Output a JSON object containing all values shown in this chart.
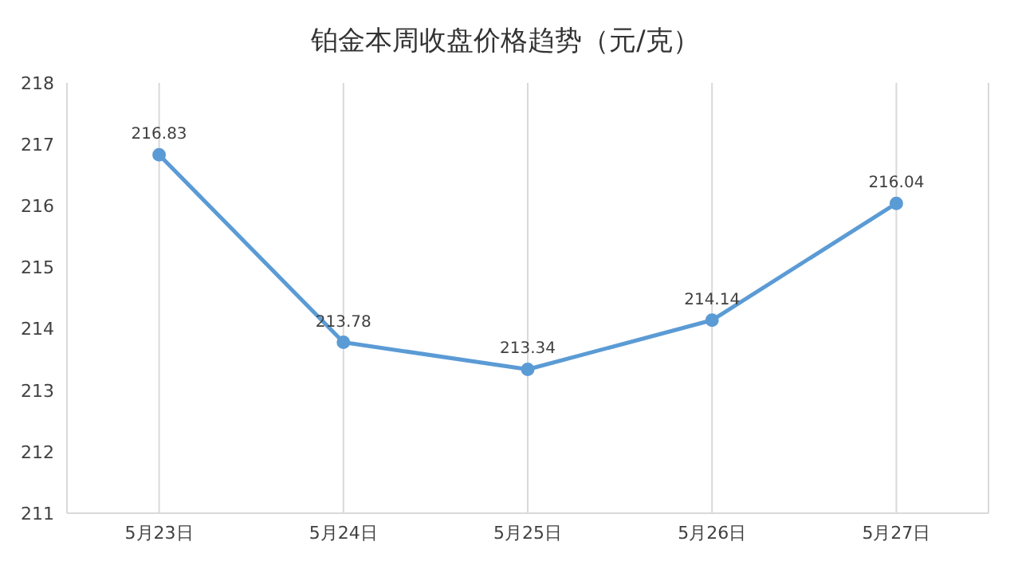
{
  "chart_data": {
    "type": "line",
    "title": "铂金本周收盘价格趋势（元/克）",
    "categories": [
      "5月23日",
      "5月24日",
      "5月25日",
      "5月26日",
      "5月27日"
    ],
    "values": [
      216.83,
      213.78,
      213.34,
      214.14,
      216.04
    ],
    "color": "#5b9bd5",
    "ylim": [
      211,
      218
    ],
    "yticks": [
      211,
      212,
      213,
      214,
      215,
      216,
      217,
      218
    ],
    "grid": "x",
    "marker": "circle",
    "line_style": "solid",
    "data_labels": true
  }
}
